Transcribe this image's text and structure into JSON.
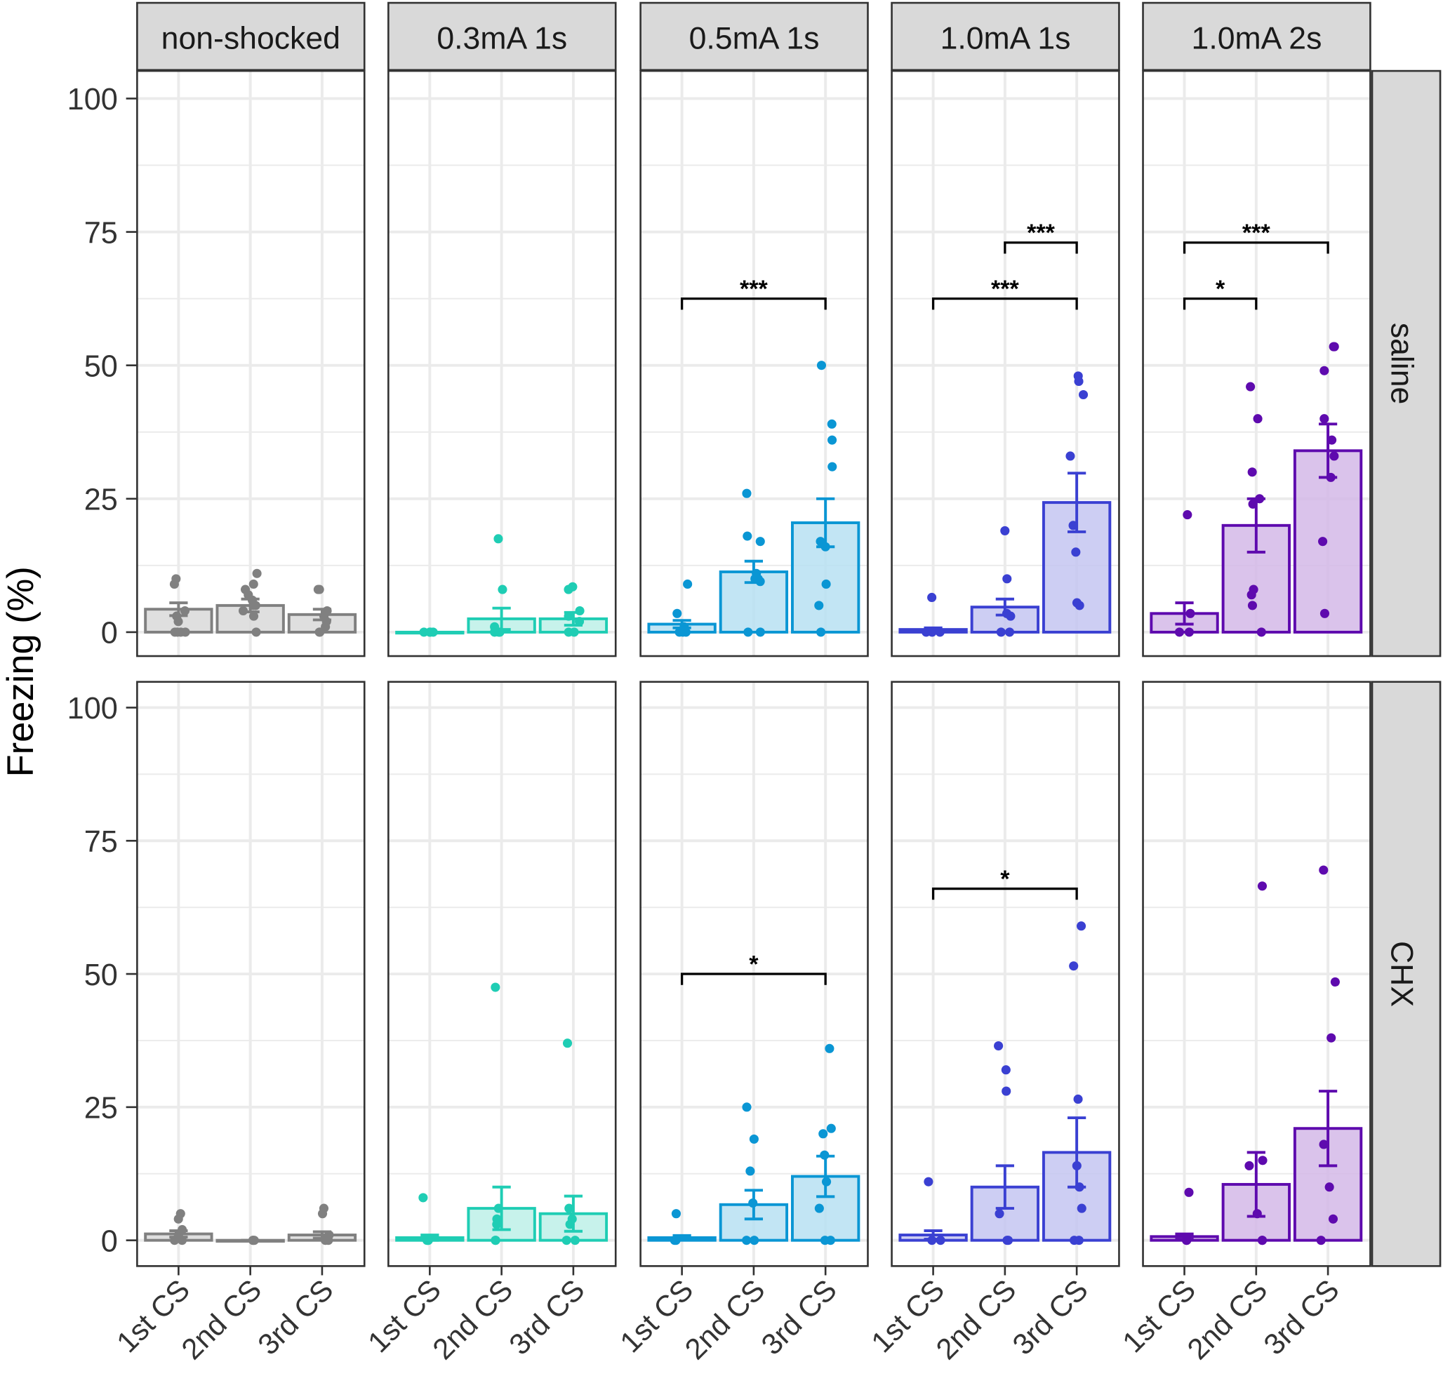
{
  "chart_data": {
    "type": "bar",
    "ylabel": "Freezing (%)",
    "ylim": [
      0,
      100
    ],
    "yticks": [
      0,
      25,
      50,
      75,
      100
    ],
    "grid": true,
    "categories": [
      "1st CS",
      "2nd CS",
      "3rd CS"
    ],
    "columns": [
      {
        "label": "non-shocked",
        "color": "#808080",
        "fill": "#d9d9d9"
      },
      {
        "label": "0.3mA 1s",
        "color": "#1fcdb4",
        "fill": "#bdf0e7"
      },
      {
        "label": "0.5mA 1s",
        "color": "#0a96d4",
        "fill": "#b7e0f2"
      },
      {
        "label": "1.0mA 1s",
        "color": "#3a40d2",
        "fill": "#c4c6f1"
      },
      {
        "label": "1.0mA 2s",
        "color": "#5e0aae",
        "fill": "#d3b8e8"
      }
    ],
    "rows": [
      {
        "label": "saline",
        "panels": [
          {
            "means": [
              4.3,
              5.0,
              3.3
            ],
            "se": [
              1.2,
              1.2,
              1.0
            ],
            "points": [
              [
                10,
                9,
                4,
                3,
                0,
                0,
                0,
                0,
                3,
                2
              ],
              [
                11,
                9,
                7,
                6,
                5,
                4,
                0,
                3,
                5,
                8
              ],
              [
                8,
                8,
                4,
                3,
                2,
                0,
                0,
                1
              ]
            ],
            "brackets": []
          },
          {
            "means": [
              0,
              2.5,
              2.5
            ],
            "se": [
              0,
              2.0,
              1.2
            ],
            "points": [
              [
                0,
                0,
                0,
                0
              ],
              [
                17.5,
                8,
                0,
                0,
                0,
                1
              ],
              [
                8.5,
                8,
                4,
                2,
                0,
                0,
                3
              ]
            ],
            "brackets": []
          },
          {
            "means": [
              1.5,
              11.3,
              20.5
            ],
            "se": [
              0.7,
              2.0,
              4.5
            ],
            "points": [
              [
                9,
                3.5,
                1,
                0,
                0,
                0
              ],
              [
                26,
                18,
                17,
                11,
                10,
                10,
                9.5,
                0,
                0
              ],
              [
                50,
                39,
                36,
                31,
                17,
                16,
                9,
                5,
                0
              ]
            ],
            "brackets": [
              {
                "from": 0,
                "to": 2,
                "y": 62.5,
                "label": "***"
              }
            ]
          },
          {
            "means": [
              0.5,
              4.7,
              24.3
            ],
            "se": [
              0.3,
              1.5,
              5.5
            ],
            "points": [
              [
                6.5,
                0,
                0,
                0
              ],
              [
                19,
                10,
                3.5,
                3,
                0,
                0
              ],
              [
                48,
                47,
                44.5,
                33,
                20,
                15,
                5,
                5.5
              ]
            ],
            "brackets": [
              {
                "from": 0,
                "to": 2,
                "y": 62.5,
                "label": "***"
              },
              {
                "from": 1,
                "to": 2,
                "y": 73,
                "label": "***"
              }
            ]
          },
          {
            "means": [
              3.5,
              20,
              34
            ],
            "se": [
              2.0,
              5.0,
              5.0
            ],
            "points": [
              [
                22,
                3.5,
                0,
                0
              ],
              [
                46,
                40,
                30,
                25,
                24,
                8,
                7,
                5,
                0
              ],
              [
                53.5,
                53.5,
                49,
                40,
                36,
                33,
                29,
                17,
                3.5
              ]
            ],
            "brackets": [
              {
                "from": 0,
                "to": 2,
                "y": 73,
                "label": "***"
              },
              {
                "from": 0,
                "to": 1,
                "y": 62.5,
                "label": "*"
              }
            ]
          }
        ]
      },
      {
        "label": "CHX",
        "panels": [
          {
            "means": [
              1.2,
              0,
              1.0
            ],
            "se": [
              0.6,
              0,
              0.6
            ],
            "points": [
              [
                5,
                4,
                2,
                1,
                0,
                0
              ],
              [
                0,
                0,
                0
              ],
              [
                6,
                5,
                1,
                0,
                0
              ]
            ],
            "brackets": []
          },
          {
            "means": [
              0.5,
              6,
              5
            ],
            "se": [
              0.5,
              4.0,
              3.3
            ],
            "points": [
              [
                8,
                0,
                0,
                0
              ],
              [
                47.5,
                6,
                4,
                3,
                0,
                0
              ],
              [
                37,
                6,
                4,
                3,
                0,
                0
              ]
            ],
            "brackets": []
          },
          {
            "means": [
              0.5,
              6.7,
              12
            ],
            "se": [
              0.4,
              2.7,
              3.8
            ],
            "points": [
              [
                5,
                0,
                0
              ],
              [
                25,
                19,
                13,
                7,
                0,
                0
              ],
              [
                36,
                21,
                20,
                16,
                11,
                6,
                0,
                0
              ]
            ],
            "brackets": [
              {
                "from": 0,
                "to": 2,
                "y": 50,
                "label": "*"
              }
            ]
          },
          {
            "means": [
              1,
              10,
              16.5
            ],
            "se": [
              0.8,
              4.0,
              6.5
            ],
            "points": [
              [
                11,
                0,
                0
              ],
              [
                36.5,
                32,
                28,
                5,
                0,
                0
              ],
              [
                59,
                51.5,
                26.5,
                14,
                10,
                6,
                0,
                0
              ]
            ],
            "brackets": [
              {
                "from": 0,
                "to": 2,
                "y": 66,
                "label": "*"
              }
            ]
          },
          {
            "means": [
              0.7,
              10.5,
              21
            ],
            "se": [
              0.5,
              6.0,
              7.0
            ],
            "points": [
              [
                9,
                0,
                0
              ],
              [
                66.5,
                15,
                14,
                5,
                0,
                0
              ],
              [
                69.5,
                48.5,
                38,
                18,
                10,
                4,
                0
              ]
            ],
            "brackets": []
          }
        ]
      }
    ]
  }
}
